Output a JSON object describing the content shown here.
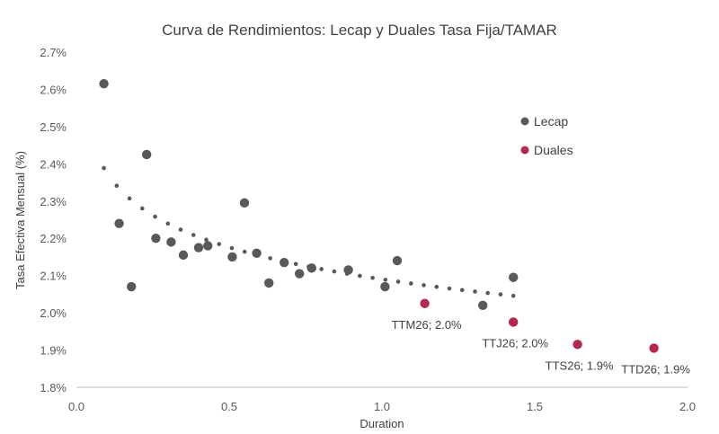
{
  "chart_data": {
    "type": "scatter",
    "title": "Curva de Rendimientos: Lecap y Duales Tasa Fija/TAMAR",
    "xlabel": "Duration",
    "ylabel": "Tasa Efectiva Mensual (%)",
    "xlim": [
      0.0,
      2.0
    ],
    "ylim": [
      1.8,
      2.7
    ],
    "x_ticks": [
      "0.0",
      "0.5",
      "1.0",
      "1.5",
      "2.0"
    ],
    "y_ticks": [
      "1.8%",
      "1.9%",
      "2.0%",
      "2.1%",
      "2.2%",
      "2.3%",
      "2.4%",
      "2.5%",
      "2.6%",
      "2.7%"
    ],
    "grid": false,
    "legend_position": "top-right",
    "series": [
      {
        "name": "Lecap",
        "color": "#595959",
        "points": [
          {
            "x": 0.09,
            "y": 2.615
          },
          {
            "x": 0.14,
            "y": 2.24
          },
          {
            "x": 0.18,
            "y": 2.07
          },
          {
            "x": 0.23,
            "y": 2.425
          },
          {
            "x": 0.26,
            "y": 2.2
          },
          {
            "x": 0.31,
            "y": 2.19
          },
          {
            "x": 0.35,
            "y": 2.155
          },
          {
            "x": 0.4,
            "y": 2.175
          },
          {
            "x": 0.43,
            "y": 2.18
          },
          {
            "x": 0.51,
            "y": 2.15
          },
          {
            "x": 0.55,
            "y": 2.295
          },
          {
            "x": 0.59,
            "y": 2.16
          },
          {
            "x": 0.63,
            "y": 2.08
          },
          {
            "x": 0.68,
            "y": 2.135
          },
          {
            "x": 0.73,
            "y": 2.105
          },
          {
            "x": 0.77,
            "y": 2.12
          },
          {
            "x": 0.89,
            "y": 2.115
          },
          {
            "x": 1.01,
            "y": 2.07
          },
          {
            "x": 1.05,
            "y": 2.14
          },
          {
            "x": 1.33,
            "y": 2.02
          },
          {
            "x": 1.43,
            "y": 2.095
          }
        ]
      },
      {
        "name": "Duales",
        "color": "#b5294e",
        "points": [
          {
            "x": 1.14,
            "y": 2.025,
            "label": "TTM26; 2.0%"
          },
          {
            "x": 1.43,
            "y": 1.975,
            "label": "TTJ26; 2.0%"
          },
          {
            "x": 1.64,
            "y": 1.915,
            "label": "TTS26; 1.9%"
          },
          {
            "x": 1.89,
            "y": 1.905,
            "label": "TTD26; 1.9%"
          }
        ]
      }
    ],
    "trendline": {
      "series": "Lecap",
      "style": "dotted",
      "color": "#595959",
      "type": "logarithmic",
      "x_range": [
        0.09,
        1.43
      ],
      "a": 2.09,
      "b": -0.124
    }
  }
}
